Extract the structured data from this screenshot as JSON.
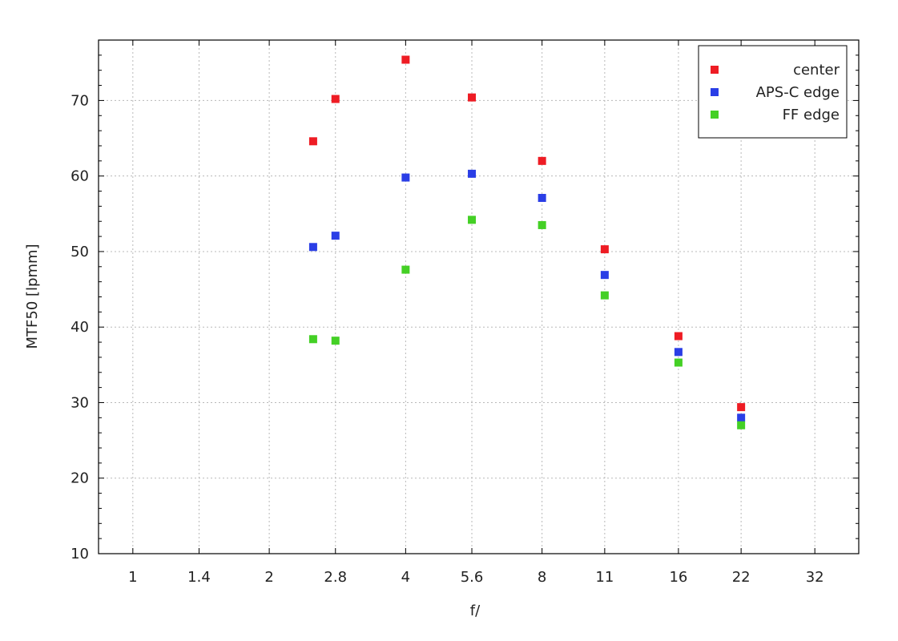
{
  "chart_data": {
    "type": "scatter",
    "title": "",
    "xlabel": "f/",
    "ylabel": "MTF50 [lpmm]",
    "x_scale": "log2",
    "x_ticks": [
      "1",
      "1.4",
      "2",
      "2.8",
      "4",
      "5.6",
      "8",
      "11",
      "16",
      "22",
      "32"
    ],
    "xlim": [
      0.84,
      40
    ],
    "y_ticks": [
      "10",
      "20",
      "30",
      "40",
      "50",
      "60",
      "70"
    ],
    "ylim": [
      10,
      78
    ],
    "grid": true,
    "legend_position": "top-right",
    "series": [
      {
        "name": "center",
        "color": "#ee1c24",
        "x": [
          2.5,
          2.8,
          4,
          5.6,
          8,
          11,
          16,
          22
        ],
        "y": [
          64.6,
          70.2,
          75.4,
          70.4,
          62.0,
          50.3,
          38.8,
          29.4
        ]
      },
      {
        "name": "APS-C edge",
        "color": "#2a3ee6",
        "x": [
          2.5,
          2.8,
          4,
          5.6,
          8,
          11,
          16,
          22
        ],
        "y": [
          50.6,
          52.1,
          59.8,
          60.3,
          57.1,
          46.9,
          36.7,
          28.0
        ]
      },
      {
        "name": "FF edge",
        "color": "#44d025",
        "x": [
          2.5,
          2.8,
          4,
          5.6,
          8,
          11,
          16,
          22
        ],
        "y": [
          38.4,
          38.2,
          47.6,
          54.2,
          53.5,
          44.2,
          35.3,
          27.0
        ]
      }
    ]
  }
}
